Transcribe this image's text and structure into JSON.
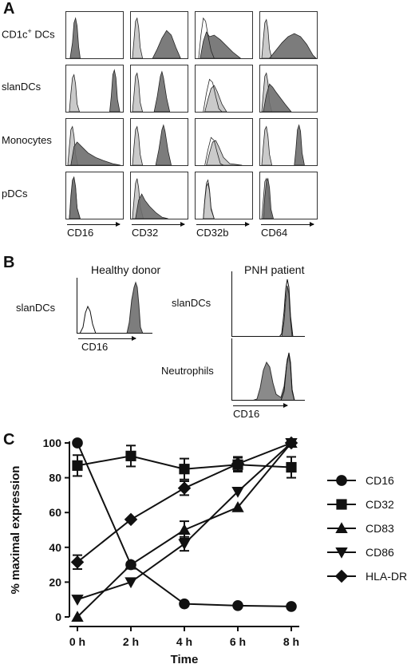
{
  "panelA": {
    "letter": "A",
    "rows": [
      {
        "label": "CD1c",
        "sup": "+",
        "label_tail": " DCs"
      },
      {
        "label": "slanDCs",
        "sup": "",
        "label_tail": ""
      },
      {
        "label": "Monocytes",
        "sup": "",
        "label_tail": ""
      },
      {
        "label": "pDCs",
        "sup": "",
        "label_tail": ""
      }
    ],
    "markers": [
      "CD16",
      "CD32",
      "CD32b",
      "CD64"
    ]
  },
  "panelB": {
    "letter": "B",
    "healthy_title": "Healthy donor",
    "pnh_title": "PNH patient",
    "healthy_row": "slanDCs",
    "pnh_rows": [
      "slanDCs",
      "Neutrophils"
    ],
    "healthy_axis": "CD16",
    "pnh_axis": "CD16"
  },
  "panelC": {
    "letter": "C",
    "chart_data": {
      "type": "line",
      "x": [
        "0 h",
        "2 h",
        "4 h",
        "6 h",
        "8 h"
      ],
      "xlabel": "Time",
      "ylabel": "% maximal expression",
      "ylim": [
        0,
        100
      ],
      "yticks": [
        0,
        20,
        40,
        60,
        80,
        100
      ],
      "legend": "right",
      "series": [
        {
          "name": "CD16",
          "marker": "circle",
          "values": [
            100,
            30,
            7.5,
            6.5,
            6
          ],
          "err": [
            0,
            0,
            0,
            0,
            0
          ]
        },
        {
          "name": "CD32",
          "marker": "square",
          "values": [
            87,
            92.5,
            85,
            87.5,
            86
          ],
          "err": [
            6,
            6,
            6,
            4,
            6
          ]
        },
        {
          "name": "CD83",
          "marker": "triangle-up",
          "values": [
            0,
            30,
            50,
            63,
            100
          ],
          "err": [
            0,
            0,
            5,
            0,
            0
          ]
        },
        {
          "name": "CD86",
          "marker": "triangle-down",
          "values": [
            10,
            20,
            42,
            72,
            100
          ],
          "err": [
            0,
            0,
            4,
            0,
            0
          ]
        },
        {
          "name": "HLA-DR",
          "marker": "diamond",
          "values": [
            31.5,
            56,
            74,
            88,
            100
          ],
          "err": [
            4,
            0,
            4,
            4,
            0
          ]
        }
      ]
    }
  }
}
